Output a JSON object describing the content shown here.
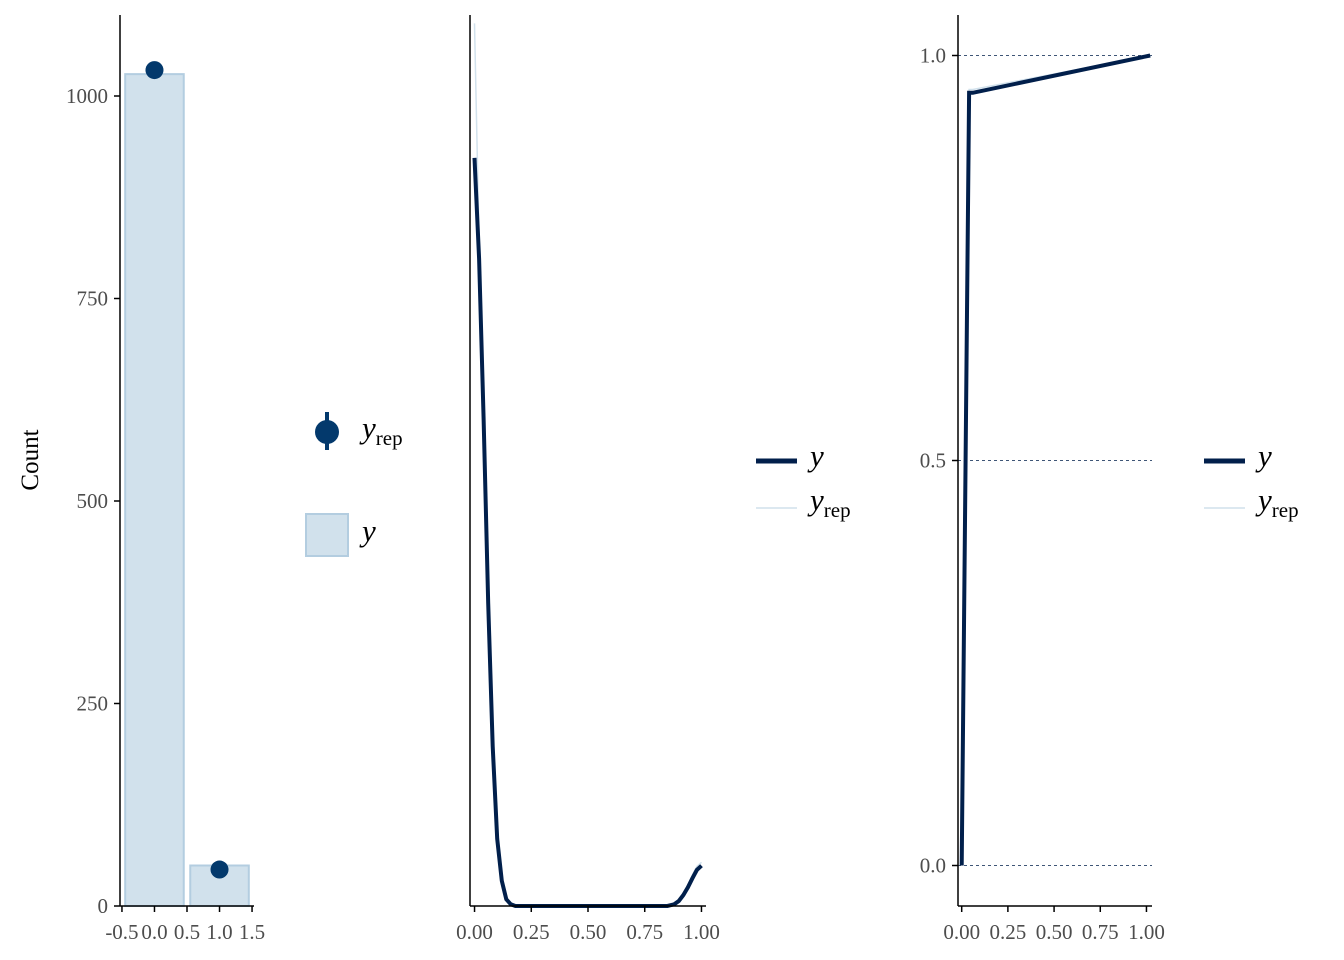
{
  "colors": {
    "dark": "#011f4b",
    "point": "#03396c",
    "bar_fill": "#d1e1ec",
    "bar_stroke": "#b3cde0",
    "rep_line": "#d1e1ec",
    "axis": "#000000",
    "tick_text": "#4d4d4d",
    "grid": "#011f4b"
  },
  "legends": {
    "bars": {
      "rep_main": "y",
      "rep_sub": "rep",
      "obs_main": "y"
    },
    "dens": {
      "obs_main": "y",
      "rep_main": "y",
      "rep_sub": "rep"
    },
    "ecdf": {
      "obs_main": "y",
      "rep_main": "y",
      "rep_sub": "rep"
    }
  },
  "chart_data": [
    {
      "type": "bar",
      "ylabel": "Count",
      "xlim": [
        -0.53,
        1.53
      ],
      "ylim": [
        0,
        1100
      ],
      "x_ticks": [
        -0.5,
        0.0,
        0.5,
        1.0,
        1.5
      ],
      "x_tick_labels": [
        "-0.5",
        "0.0",
        "0.5",
        "1.0",
        "1.5"
      ],
      "y_ticks": [
        0,
        250,
        500,
        750,
        1000
      ],
      "y_tick_labels": [
        "0",
        "250",
        "500",
        "750",
        "1000"
      ],
      "categories": [
        0,
        1
      ],
      "bar_width": 0.9,
      "series": [
        {
          "name": "y",
          "values": [
            1027,
            50
          ]
        },
        {
          "name": "y_rep",
          "values": [
            1032,
            45
          ],
          "lower": [
            1025,
            38
          ],
          "upper": [
            1039,
            52
          ]
        }
      ],
      "legend_position": "right"
    },
    {
      "type": "line",
      "xlim": [
        -0.02,
        1.02
      ],
      "ylim": [
        0,
        10.6
      ],
      "x_ticks": [
        0.0,
        0.25,
        0.5,
        0.75,
        1.0
      ],
      "x_tick_labels": [
        "0.00",
        "0.25",
        "0.50",
        "0.75",
        "1.00"
      ],
      "series": [
        {
          "name": "y",
          "x": [
            0.0,
            0.02,
            0.04,
            0.06,
            0.08,
            0.1,
            0.12,
            0.14,
            0.16,
            0.18,
            0.2,
            0.3,
            0.5,
            0.7,
            0.85,
            0.88,
            0.9,
            0.92,
            0.94,
            0.96,
            0.98,
            1.0
          ],
          "y": [
            8.9,
            7.7,
            5.8,
            3.6,
            1.9,
            0.8,
            0.3,
            0.08,
            0.02,
            0.0,
            0.0,
            0.0,
            0.0,
            0.0,
            0.0,
            0.02,
            0.06,
            0.13,
            0.22,
            0.33,
            0.43,
            0.48
          ]
        },
        {
          "name": "y_rep",
          "x": [
            0.0,
            0.01,
            0.02,
            0.04,
            0.06,
            0.08,
            0.1,
            0.12,
            0.14,
            0.16,
            0.18,
            0.2,
            0.3,
            0.5,
            0.7,
            0.85,
            0.88,
            0.9,
            0.92,
            0.94,
            0.96,
            0.98,
            1.0
          ],
          "y": [
            10.5,
            9.2,
            7.9,
            5.9,
            3.7,
            2.0,
            0.85,
            0.33,
            0.1,
            0.03,
            0.0,
            0.0,
            0.0,
            0.0,
            0.0,
            0.0,
            0.02,
            0.07,
            0.15,
            0.25,
            0.37,
            0.47,
            0.52
          ]
        }
      ],
      "legend_position": "right"
    },
    {
      "type": "line",
      "xlim": [
        -0.02,
        1.03
      ],
      "ylim": [
        -0.05,
        1.05
      ],
      "x_ticks": [
        0.0,
        0.25,
        0.5,
        0.75,
        1.0
      ],
      "x_tick_labels": [
        "0.00",
        "0.25",
        "0.50",
        "0.75",
        "1.00"
      ],
      "y_ticks": [
        0.0,
        0.5,
        1.0
      ],
      "y_tick_labels": [
        "0.0",
        "0.5",
        "1.0"
      ],
      "grid": "horizontal-dashed",
      "series": [
        {
          "name": "y",
          "x": [
            0.0,
            0.04,
            0.06,
            1.02
          ],
          "y": [
            0.0,
            0.954,
            0.954,
            1.0
          ]
        },
        {
          "name": "y_rep",
          "x": [
            0.0,
            0.04,
            0.06,
            1.02
          ],
          "y": [
            0.0,
            0.958,
            0.958,
            1.0
          ]
        }
      ],
      "legend_position": "right"
    }
  ]
}
